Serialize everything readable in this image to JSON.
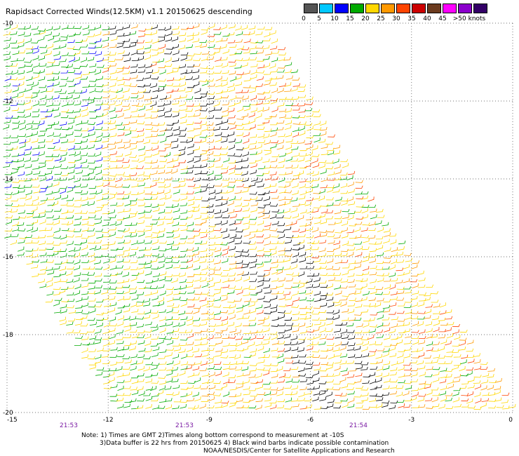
{
  "title": "Rapidsact Corrected Winds(12.5KM) v1.1 20150625 descending",
  "legend": {
    "colors": [
      "#555555",
      "#00c8ff",
      "#0000ff",
      "#00aa00",
      "#ffd700",
      "#ff9900",
      "#ff4400",
      "#cc0000",
      "#6b3a1e",
      "#ff00ff",
      "#8b00cc",
      "#330066"
    ],
    "labels": [
      "0",
      "5",
      "10",
      "15",
      "20",
      "25",
      "30",
      "35",
      "40",
      "45",
      ">50 knots"
    ]
  },
  "axes": {
    "x_ticks": [
      "-15",
      "-12",
      "-9",
      "-6",
      "-3",
      "0"
    ],
    "y_ticks": [
      "-10",
      "-12",
      "-14",
      "-16",
      "-18",
      "-20"
    ]
  },
  "pass_times": [
    "21:53",
    "21:53",
    "21:54"
  ],
  "notes": [
    "Note: 1) Times are GMT 2)Times along bottom correspond to measurement at -10S",
    "3)Data buffer is 22 hrs from 20150625 4) Black wind barbs indicate possible contamination",
    "NOAA/NESDIS/Center for Satellite Applications and Research"
  ]
}
